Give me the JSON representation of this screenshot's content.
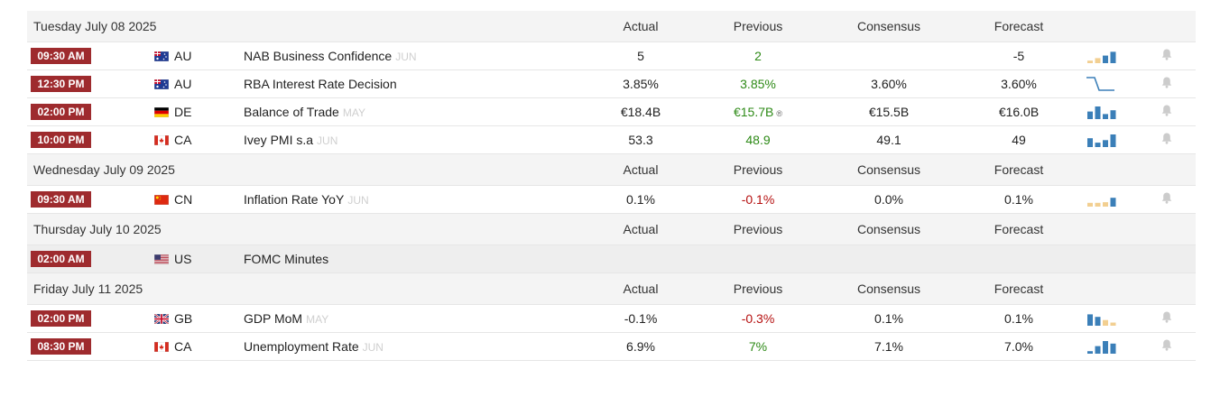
{
  "columns": {
    "actual": "Actual",
    "previous": "Previous",
    "consensus": "Consensus",
    "forecast": "Forecast"
  },
  "colors": {
    "time_badge": "#9e2b2e",
    "previous_up": "#2e8a17",
    "previous_down": "#b50f0f",
    "spark_blue": "#3b7fb8",
    "spark_tan": "#f2cf91"
  },
  "days": [
    {
      "date": "Tuesday July 08 2025",
      "events": [
        {
          "time": "09:30 AM",
          "flag": "AU",
          "country": "AU",
          "name": "NAB Business Confidence",
          "ref": "JUN",
          "actual": "5",
          "previous": "2",
          "previous_color": "green",
          "consensus": "",
          "forecast": "-5",
          "spark": [
            {
              "v": 0.2,
              "c": "tan"
            },
            {
              "v": 0.4,
              "c": "tan"
            },
            {
              "v": 0.6,
              "c": "blue"
            },
            {
              "v": 0.9,
              "c": "blue"
            }
          ]
        },
        {
          "time": "12:30 PM",
          "flag": "AU",
          "country": "AU",
          "name": "RBA Interest Rate Decision",
          "ref": "",
          "actual": "3.85%",
          "previous": "3.85%",
          "previous_color": "green",
          "consensus": "3.60%",
          "forecast": "3.60%",
          "spark_type": "step"
        },
        {
          "time": "02:00 PM",
          "flag": "DE",
          "country": "DE",
          "name": "Balance of Trade",
          "ref": "MAY",
          "actual": "€18.4B",
          "previous": "€15.7B",
          "previous_color": "green",
          "previous_mark": "®",
          "consensus": "€15.5B",
          "forecast": "€16.0B",
          "spark": [
            {
              "v": 0.6,
              "c": "blue"
            },
            {
              "v": 1.0,
              "c": "blue"
            },
            {
              "v": 0.4,
              "c": "blue"
            },
            {
              "v": 0.7,
              "c": "blue"
            }
          ]
        },
        {
          "time": "10:00 PM",
          "flag": "CA",
          "country": "CA",
          "name": "Ivey PMI s.a",
          "ref": "JUN",
          "actual": "53.3",
          "previous": "48.9",
          "previous_color": "green",
          "consensus": "49.1",
          "forecast": "49",
          "spark": [
            {
              "v": 0.7,
              "c": "blue"
            },
            {
              "v": 0.35,
              "c": "blue"
            },
            {
              "v": 0.55,
              "c": "blue"
            },
            {
              "v": 1.0,
              "c": "blue"
            }
          ]
        }
      ]
    },
    {
      "date": "Wednesday July 09 2025",
      "events": [
        {
          "time": "09:30 AM",
          "flag": "CN",
          "country": "CN",
          "name": "Inflation Rate YoY",
          "ref": "JUN",
          "actual": "0.1%",
          "previous": "-0.1%",
          "previous_color": "red",
          "consensus": "0.0%",
          "forecast": "0.1%",
          "spark": [
            {
              "v": 0.3,
              "c": "tan"
            },
            {
              "v": 0.3,
              "c": "tan"
            },
            {
              "v": 0.35,
              "c": "tan"
            },
            {
              "v": 0.7,
              "c": "blue"
            }
          ]
        }
      ]
    },
    {
      "date": "Thursday July 10 2025",
      "events": [
        {
          "time": "02:00 AM",
          "flag": "US",
          "country": "US",
          "name": "FOMC Minutes",
          "ref": "",
          "actual": "",
          "previous": "",
          "previous_color": "green",
          "consensus": "",
          "forecast": "",
          "alt": true,
          "no_extras": true
        }
      ]
    },
    {
      "date": "Friday July 11 2025",
      "events": [
        {
          "time": "02:00 PM",
          "flag": "GB",
          "country": "GB",
          "name": "GDP MoM",
          "ref": "MAY",
          "actual": "-0.1%",
          "previous": "-0.3%",
          "previous_color": "red",
          "consensus": "0.1%",
          "forecast": "0.1%",
          "spark": [
            {
              "v": 0.9,
              "c": "blue"
            },
            {
              "v": 0.7,
              "c": "blue"
            },
            {
              "v": 0.45,
              "c": "tan"
            },
            {
              "v": 0.25,
              "c": "tan"
            }
          ]
        },
        {
          "time": "08:30 PM",
          "flag": "CA",
          "country": "CA",
          "name": "Unemployment Rate",
          "ref": "JUN",
          "actual": "6.9%",
          "previous": "7%",
          "previous_color": "green",
          "consensus": "7.1%",
          "forecast": "7.0%",
          "spark": [
            {
              "v": 0.2,
              "c": "blue"
            },
            {
              "v": 0.6,
              "c": "blue"
            },
            {
              "v": 1.0,
              "c": "blue"
            },
            {
              "v": 0.8,
              "c": "blue"
            }
          ]
        }
      ]
    }
  ]
}
